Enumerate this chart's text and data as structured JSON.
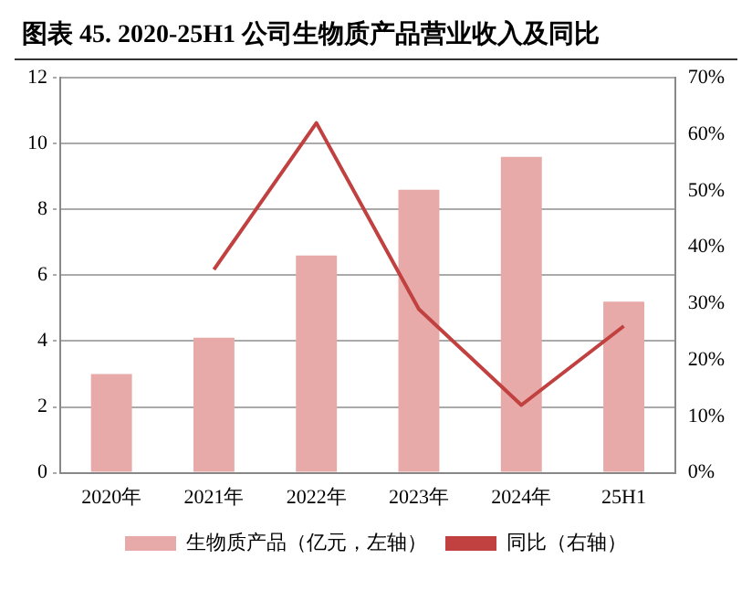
{
  "chart_data": {
    "type": "bar",
    "title": "图表 45. 2020-25H1 公司生物质产品营业收入及同比",
    "categories": [
      "2020年",
      "2021年",
      "2022年",
      "2023年",
      "2024年",
      "25H1"
    ],
    "series": [
      {
        "name": "生物质产品（亿元，左轴）",
        "color": "#e8aaa9",
        "values": [
          3.0,
          4.1,
          6.6,
          8.6,
          9.6,
          5.2
        ]
      },
      {
        "name": "同比（右轴）",
        "type": "line",
        "axis": "y2",
        "color": "#c0413f",
        "values": [
          null,
          36,
          62,
          29,
          12,
          26
        ]
      }
    ],
    "ylim": [
      0,
      12
    ],
    "yticks": [
      0,
      2,
      4,
      6,
      8,
      10,
      12
    ],
    "y2lim": [
      0,
      70
    ],
    "y2ticks": [
      {
        "value": 0,
        "label": "0%"
      },
      {
        "value": 10,
        "label": "10%"
      },
      {
        "value": 20,
        "label": "20%"
      },
      {
        "value": 30,
        "label": "30%"
      },
      {
        "value": 40,
        "label": "40%"
      },
      {
        "value": 50,
        "label": "50%"
      },
      {
        "value": 60,
        "label": "60%"
      },
      {
        "value": 70,
        "label": "70%"
      }
    ],
    "grid": "y",
    "legend": "bottom",
    "marker": "none"
  }
}
